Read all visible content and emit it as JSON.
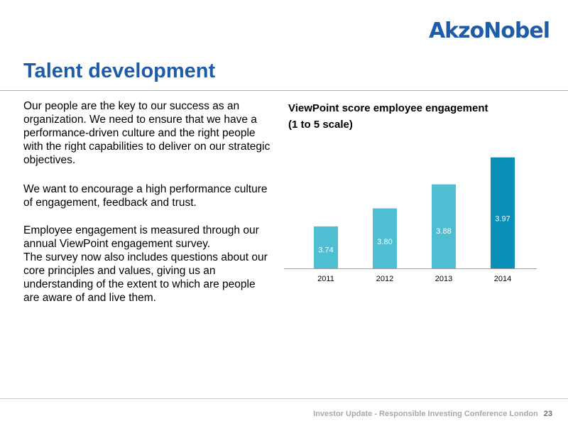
{
  "header": {
    "logo": "AkzoNobel",
    "title": "Talent development"
  },
  "body": {
    "paragraphs": [
      "Our people are the key to our success as an organization. We need to ensure that we have a performance-driven culture and the right people with the right capabilities to deliver on our strategic objectives.",
      "We want to encourage a high performance culture of engagement, feedback and trust.",
      "Employee engagement is measured through our annual ViewPoint engagement survey.",
      "The survey now also includes questions about our core principles and values, giving us an understanding of the extent to which are people are aware of and live them."
    ]
  },
  "chart_data": {
    "type": "bar",
    "title": "ViewPoint score employee engagement",
    "subtitle": "(1 to 5 scale)",
    "categories": [
      "2011",
      "2012",
      "2013",
      "2014"
    ],
    "values": [
      3.74,
      3.8,
      3.88,
      3.97
    ],
    "value_labels": [
      "3.74",
      "3.80",
      "3.88",
      "3.97"
    ],
    "colors": [
      "#4ebfd3",
      "#4ebfd3",
      "#4ebfd3",
      "#0a8fb9"
    ],
    "axis_color": "#a0a0a0",
    "grid": false,
    "legend": "none",
    "ylim": [
      3.6,
      4.0
    ]
  },
  "footer": {
    "text": "Investor Update - Responsible Investing Conference London",
    "page_number": "23"
  }
}
